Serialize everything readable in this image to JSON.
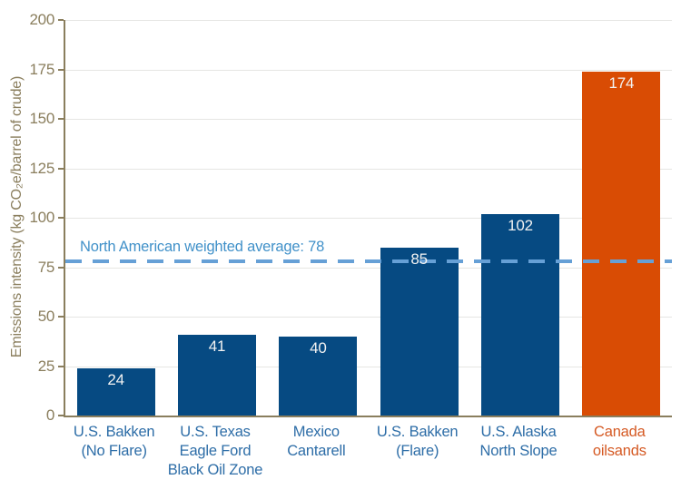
{
  "chart_data": {
    "type": "bar",
    "title": "",
    "xlabel": "",
    "ylabel": "Emissions intensity (kg CO₂e/barrel of crude)",
    "categories": [
      "U.S. Bakken (No Flare)",
      "U.S. Texas Eagle Ford Black Oil Zone",
      "Mexico Cantarell",
      "U.S. Bakken (Flare)",
      "U.S. Alaska North Slope",
      "Canada oilsands"
    ],
    "category_lines": [
      [
        "U.S. Bakken",
        "(No Flare)"
      ],
      [
        "U.S. Texas",
        "Eagle Ford",
        "Black Oil Zone"
      ],
      [
        "Mexico",
        "Cantarell"
      ],
      [
        "U.S. Bakken",
        "(Flare)"
      ],
      [
        "U.S. Alaska",
        "North Slope"
      ],
      [
        "Canada",
        "oilsands"
      ]
    ],
    "values": [
      24,
      41,
      40,
      85,
      102,
      174
    ],
    "value_labels": [
      "24",
      "41",
      "40",
      "85",
      "102",
      "174"
    ],
    "highlight_index": 5,
    "ylim": [
      0,
      200
    ],
    "yticks": [
      0,
      25,
      50,
      75,
      100,
      125,
      150,
      175,
      200
    ],
    "grid": "horizontal",
    "legend": "none",
    "reference_line": {
      "value": 78,
      "label": "North American weighted average: 78",
      "style": "dashed"
    }
  },
  "colors": {
    "bar_blue": "#064a82",
    "bar_orange": "#d94c04",
    "category_label_blue": "#2d6da7",
    "category_label_orange": "#d55a24",
    "axis_olive": "#8a7e5d",
    "gridline_gray": "#e6e6e3",
    "value_label_white": "#f2f2f2",
    "reference_dash_blue": "#66a0d6",
    "reference_text_blue": "#4191c9",
    "background": "#ffffff"
  }
}
